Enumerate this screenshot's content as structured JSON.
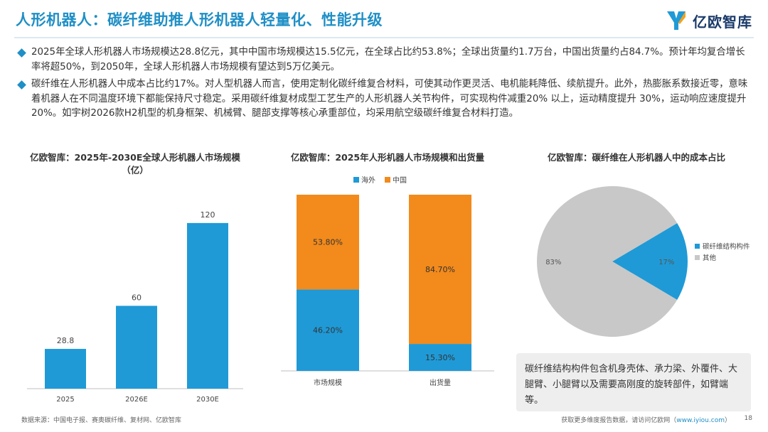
{
  "header": {
    "title": "人形机器人：碳纤维助推人形机器人轻量化、性能升级",
    "logo_text": "亿欧智库"
  },
  "bullets": [
    "2025年全球人形机器人市场规模达28.8亿元，其中中国市场规模达15.5亿元，在全球占比约53.8%；全球出货量约1.7万台，中国出货量约占84.7%。预计年均复合增长率将超50%，到2050年，全球人形机器人市场规模有望达到5万亿美元。",
    "碳纤维在人形机器人中成本占比约17%。对人型机器人而言，使用定制化碳纤维复合材料，可使其动作更灵活、电机能耗降低、续航提升。此外，热膨胀系数接近零，意味着机器人在不同温度环境下都能保持尺寸稳定。采用碳纤维复材成型工艺生产的人形机器人关节构件，可实现构件减重20% 以上，运动精度提升 30%，运动响应速度提升 20%。如宇树2026款H2机型的机身框架、机械臂、腿部支撑等核心承重部位，均采用航空级碳纤维复合材料打造。"
  ],
  "chart_data": [
    {
      "type": "bar",
      "title": "亿欧智库：2025年-2030E全球人形机器人市场规模（亿）",
      "categories": [
        "2025",
        "2026E",
        "2030E"
      ],
      "values": [
        28.8,
        60,
        120
      ],
      "ylim": [
        0,
        140
      ],
      "color": "#1f9ad6",
      "grid": false
    },
    {
      "type": "bar",
      "stacked": true,
      "percent": true,
      "title": "亿欧智库：2025年人形机器人市场规模和出货量",
      "categories": [
        "市场规模",
        "出货量"
      ],
      "series": [
        {
          "name": "海外",
          "values": [
            46.2,
            15.3
          ],
          "labels": [
            "46.20%",
            "15.30%"
          ],
          "color": "#1f9ad6"
        },
        {
          "name": "中国",
          "values": [
            53.8,
            84.7
          ],
          "labels": [
            "53.80%",
            "84.70%"
          ],
          "color": "#f28a1c"
        }
      ],
      "legend": "top"
    },
    {
      "type": "pie",
      "title": "亿欧智库：碳纤维在人形机器人中的成本占比",
      "slices": [
        {
          "name": "碳纤维结构构件",
          "value": 17,
          "label": "17%",
          "color": "#1f9ad6"
        },
        {
          "name": "其他",
          "value": 83,
          "label": "83%",
          "color": "#c8c8c8"
        }
      ],
      "legend": "right"
    }
  ],
  "note": "碳纤维结构构件包含机身壳体、承力梁、外覆件、大腿臂、小腿臂以及需要高刚度的旋转部件，如臂端等。",
  "footer": {
    "source": "数据来源：中国电子报、赛奥碳纤维、复材网、亿欧智库",
    "more_prefix": "获取更多维度报告数据，请访问亿欧网（",
    "more_link": "www.iyiou.com",
    "more_suffix": "）",
    "page": "18"
  }
}
